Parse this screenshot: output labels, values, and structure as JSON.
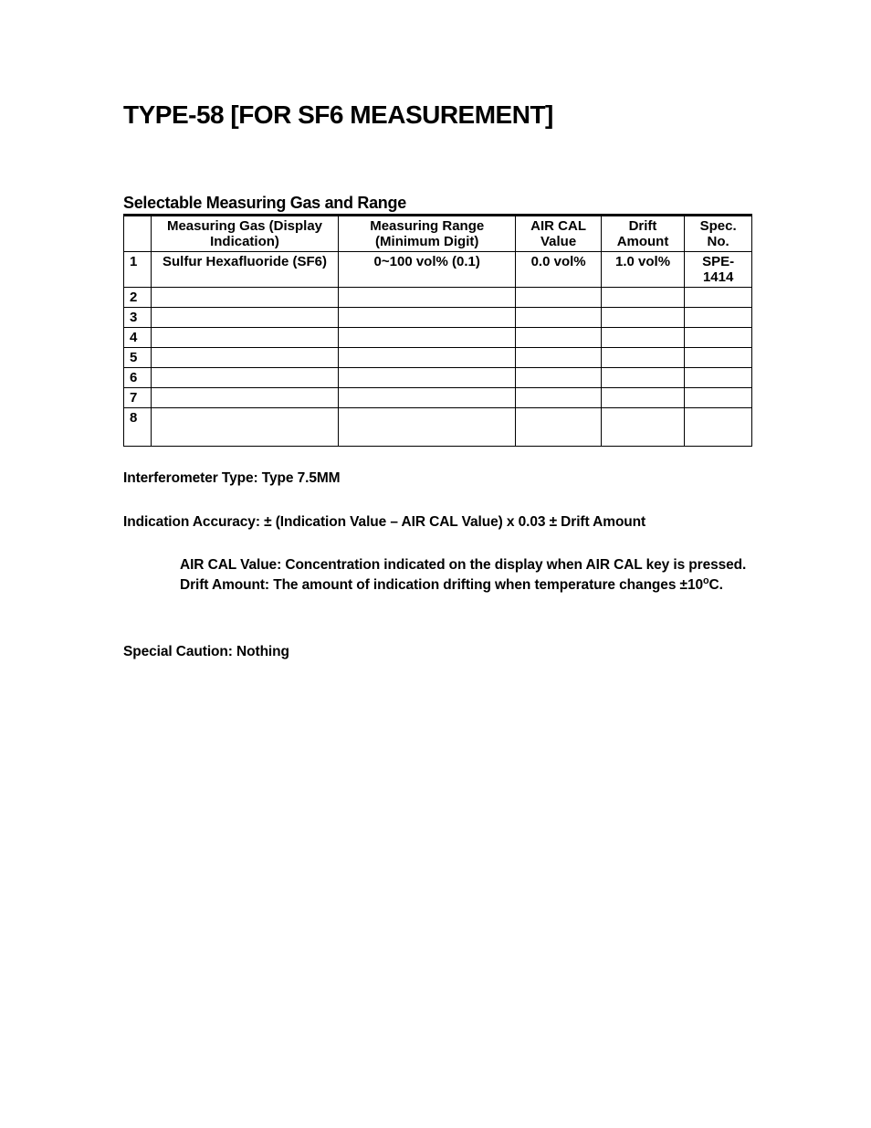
{
  "title": "TYPE-58 [FOR SF6 MEASUREMENT]",
  "section_heading": "Selectable Measuring Gas and Range",
  "table": {
    "headers": {
      "row_num": "",
      "measuring_gas": "Measuring Gas (Display Indication)",
      "measuring_range": "Measuring Range (Minimum Digit)",
      "air_cal": "AIR CAL Value",
      "drift": "Drift Amount",
      "spec_no": "Spec. No."
    },
    "rows": [
      {
        "num": "1",
        "gas": "Sulfur Hexafluoride (SF6)",
        "range": "0~100 vol% (0.1)",
        "aircal": "0.0 vol%",
        "drift": "1.0 vol%",
        "spec": "SPE- 1414"
      },
      {
        "num": "2",
        "gas": "",
        "range": "",
        "aircal": "",
        "drift": "",
        "spec": ""
      },
      {
        "num": "3",
        "gas": "",
        "range": "",
        "aircal": "",
        "drift": "",
        "spec": ""
      },
      {
        "num": "4",
        "gas": "",
        "range": "",
        "aircal": "",
        "drift": "",
        "spec": ""
      },
      {
        "num": "5",
        "gas": "",
        "range": "",
        "aircal": "",
        "drift": "",
        "spec": ""
      },
      {
        "num": "6",
        "gas": "",
        "range": "",
        "aircal": "",
        "drift": "",
        "spec": ""
      },
      {
        "num": "7",
        "gas": "",
        "range": "",
        "aircal": "",
        "drift": "",
        "spec": ""
      },
      {
        "num": "8",
        "gas": "",
        "range": "",
        "aircal": "",
        "drift": "",
        "spec": ""
      }
    ],
    "col_widths": {
      "row_num": "30px",
      "gas": "210px",
      "range": "120px",
      "aircal": "95px",
      "drift": "90px",
      "spec": "115px"
    }
  },
  "body": {
    "interferometer": "Interferometer Type: Type 7.5MM",
    "accuracy": "Indication Accuracy: ± (Indication Value – AIR CAL Value) x 0.03 ± Drift Amount",
    "aircal_def": "AIR CAL Value: Concentration indicated on the display when AIR CAL key is pressed.",
    "drift_def_pre": "Drift Amount: The amount of indication drifting when temperature changes ±10",
    "drift_def_sup": "o",
    "drift_def_post": "C.",
    "caution": "Special Caution: Nothing"
  },
  "styling": {
    "background_color": "#ffffff",
    "text_color": "#000000",
    "border_color": "#000000",
    "title_fontsize": 28,
    "heading_fontsize": 18,
    "table_fontsize": 15,
    "body_fontsize": 15.5
  }
}
